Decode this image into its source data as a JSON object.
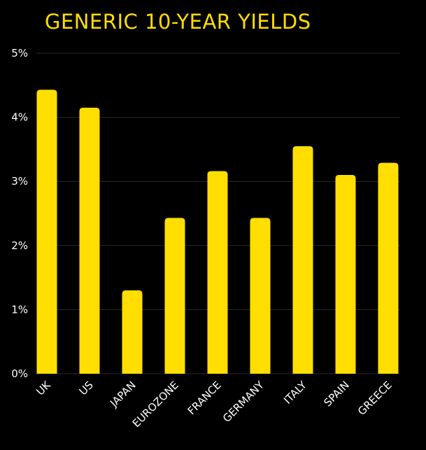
{
  "chart_data": {
    "type": "bar",
    "title": "GENERIC 10-YEAR YIELDS",
    "categories": [
      "UK",
      "US",
      "JAPAN",
      "EUROZONE",
      "FRANCE",
      "GERMANY",
      "ITALY",
      "SPAIN",
      "GREECE"
    ],
    "values": [
      4.43,
      4.15,
      1.3,
      2.43,
      3.16,
      2.43,
      3.55,
      3.1,
      3.29
    ],
    "ylim": [
      0,
      5
    ],
    "yticks": [
      0,
      1,
      2,
      3,
      4,
      5
    ],
    "ytick_labels": [
      "0%",
      "1%",
      "2%",
      "3%",
      "4%",
      "5%"
    ],
    "xlabel": "",
    "ylabel": "",
    "grid": true,
    "colors": {
      "bar": "#FFDE00",
      "background": "#000000",
      "grid": "#2A2A2A",
      "text": "#FFFFFF",
      "title": "#FFDE00"
    }
  }
}
